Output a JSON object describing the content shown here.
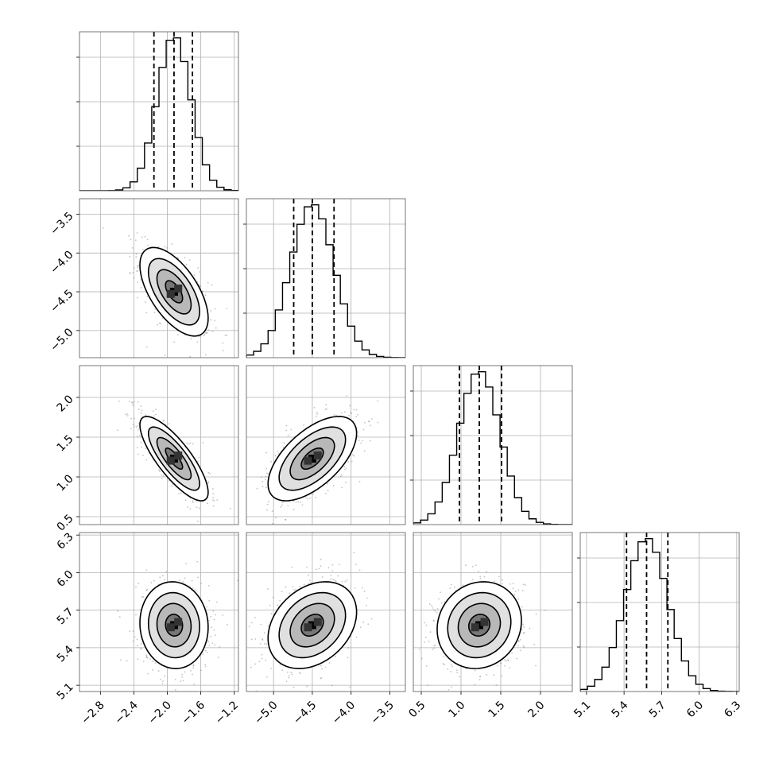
{
  "chart_data": {
    "type": "corner",
    "title": "",
    "parameters": [
      {
        "mean": -1.92,
        "sd": 0.2,
        "range": [
          -3.05,
          -1.15
        ],
        "ticks": [
          -2.8,
          -2.4,
          -2.0,
          -1.6,
          -1.2
        ],
        "tick_labels": [
          "−2.8",
          "−2.4",
          "−2.0",
          "−1.6",
          "−1.2"
        ],
        "quantiles": [
          -2.16,
          -1.92,
          -1.7
        ]
      },
      {
        "mean": -4.5,
        "sd": 0.28,
        "range": [
          -5.35,
          -3.3
        ],
        "ticks": [
          -5.0,
          -4.5,
          -4.0,
          -3.5
        ],
        "tick_labels": [
          "−5.0",
          "−4.5",
          "−4.0",
          "−3.5"
        ],
        "quantiles": [
          -4.74,
          -4.5,
          -4.22
        ]
      },
      {
        "mean": 1.23,
        "sd": 0.26,
        "range": [
          0.4,
          2.4
        ],
        "ticks": [
          0.5,
          1.0,
          1.5,
          2.0
        ],
        "tick_labels": [
          "0.5",
          "1.0",
          "1.5",
          "2.0"
        ],
        "quantiles": [
          0.98,
          1.23,
          1.51
        ]
      },
      {
        "mean": 5.58,
        "sd": 0.17,
        "range": [
          5.05,
          6.32
        ],
        "ticks": [
          5.1,
          5.4,
          5.7,
          6.0,
          6.3
        ],
        "tick_labels": [
          "5.1",
          "5.4",
          "5.7",
          "6.0",
          "6.3"
        ],
        "quantiles": [
          5.42,
          5.58,
          5.75
        ]
      }
    ],
    "correlations": [
      [
        1.0,
        -0.6,
        -0.8,
        -0.05
      ],
      [
        -0.6,
        1.0,
        0.6,
        0.3
      ],
      [
        -0.8,
        0.6,
        1.0,
        0.1
      ],
      [
        -0.05,
        0.3,
        0.1,
        1.0
      ]
    ],
    "contour_levels_sigma": [
      0.5,
      1.0,
      1.5,
      2.0
    ],
    "grid": true
  }
}
